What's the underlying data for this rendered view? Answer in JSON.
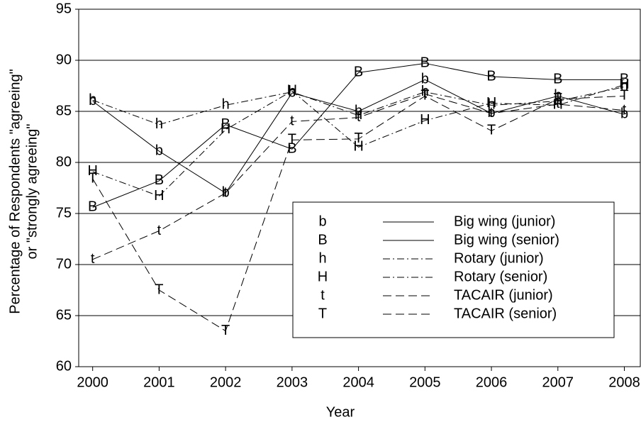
{
  "chart_data": {
    "type": "line",
    "x_label": "Year",
    "y_label": [
      "Percentage of Respondents \"agreeing\"",
      "or \"strongly agreeing\""
    ],
    "x": [
      2000,
      2001,
      2002,
      2003,
      2004,
      2005,
      2006,
      2007,
      2008
    ],
    "xlim": [
      1999.79,
      2008.24
    ],
    "xticks": [
      2000,
      2001,
      2002,
      2003,
      2004,
      2005,
      2006,
      2007,
      2008
    ],
    "ylim": [
      60,
      95
    ],
    "yticks": [
      60,
      65,
      70,
      75,
      80,
      85,
      90,
      95
    ],
    "grid": true,
    "series": [
      {
        "name": "Big wing (junior)",
        "marker": "b",
        "dash": "solid",
        "color": "#000000",
        "values": [
          86.0,
          81.1,
          77.0,
          86.8,
          85.0,
          88.1,
          84.8,
          86.5,
          84.7
        ]
      },
      {
        "name": "Big wing (senior)",
        "marker": "B",
        "dash": "solid",
        "color": "#000000",
        "values": [
          75.6,
          78.2,
          83.7,
          81.3,
          88.8,
          89.7,
          88.4,
          88.1,
          88.1
        ]
      },
      {
        "name": "Rotary (junior)",
        "marker": "h",
        "dash": "dashdot",
        "color": "#000000",
        "values": [
          86.1,
          83.7,
          85.6,
          86.9,
          84.6,
          86.9,
          85.6,
          86.0,
          87.4
        ]
      },
      {
        "name": "Rotary (senior)",
        "marker": "H",
        "dash": "dashdot",
        "color": "#000000",
        "values": [
          79.1,
          76.7,
          83.2,
          87.0,
          81.5,
          84.1,
          85.8,
          85.6,
          87.6
        ]
      },
      {
        "name": "TACAIR (junior)",
        "marker": "t",
        "dash": "dashed",
        "color": "#000000",
        "values": [
          70.5,
          73.3,
          77.0,
          84.0,
          84.4,
          86.7,
          84.8,
          85.7,
          85.1
        ]
      },
      {
        "name": "TACAIR (senior)",
        "marker": "T",
        "dash": "dashed",
        "color": "#000000",
        "values": [
          78.4,
          67.5,
          63.5,
          82.2,
          82.3,
          86.5,
          83.1,
          86.2,
          86.5
        ]
      }
    ]
  }
}
